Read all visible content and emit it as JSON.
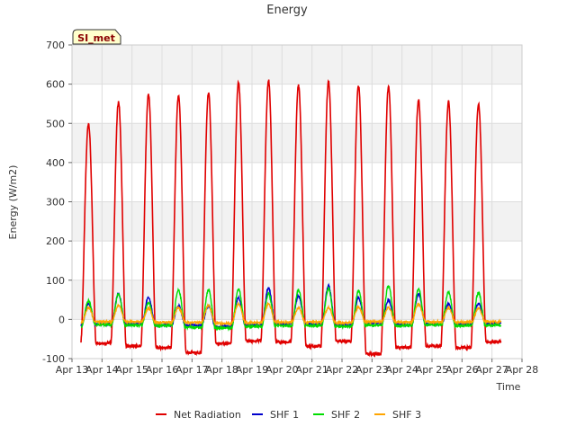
{
  "chart_data": {
    "type": "line",
    "title": "Energy",
    "xlabel": "Time",
    "ylabel": "Energy (W/m2)",
    "ylim": [
      -100,
      700
    ],
    "yticks": [
      -100,
      0,
      100,
      200,
      300,
      400,
      500,
      600,
      700
    ],
    "xlim": [
      13,
      28
    ],
    "xticks": [
      {
        "value": 13,
        "label": "Apr 13"
      },
      {
        "value": 14,
        "label": "Apr 14"
      },
      {
        "value": 15,
        "label": "Apr 15"
      },
      {
        "value": 16,
        "label": "Apr 16"
      },
      {
        "value": 17,
        "label": "Apr 17"
      },
      {
        "value": 18,
        "label": "Apr 18"
      },
      {
        "value": 19,
        "label": "Apr 19"
      },
      {
        "value": 20,
        "label": "Apr 20"
      },
      {
        "value": 21,
        "label": "Apr 21"
      },
      {
        "value": 22,
        "label": "Apr 22"
      },
      {
        "value": 23,
        "label": "Apr 23"
      },
      {
        "value": 24,
        "label": "Apr 24"
      },
      {
        "value": 25,
        "label": "Apr 25"
      },
      {
        "value": 26,
        "label": "Apr 26"
      },
      {
        "value": 27,
        "label": "Apr 27"
      },
      {
        "value": 28,
        "label": "Apr 28"
      }
    ],
    "grid": true,
    "site_label": "SI_met",
    "series_time_start": 13.3,
    "series_time_end": 27.3,
    "series": [
      {
        "name": "Net Radiation",
        "color": "#e00000",
        "day_peaks": [
          500,
          555,
          575,
          570,
          578,
          605,
          610,
          598,
          608,
          597,
          595,
          560,
          555,
          550
        ],
        "night_values": [
          -55,
          -60,
          -68,
          -72,
          -85,
          -62,
          -55,
          -58,
          -68,
          -55,
          -88,
          -72,
          -68,
          -72,
          -58
        ]
      },
      {
        "name": "SHF 1",
        "color": "#0000cc",
        "day_peaks": [
          40,
          65,
          55,
          35,
          35,
          55,
          80,
          60,
          85,
          55,
          50,
          65,
          40,
          40
        ],
        "night_values": [
          -15,
          -12,
          -12,
          -14,
          -15,
          -18,
          -15,
          -12,
          -12,
          -15,
          -10,
          -14,
          -12,
          -12,
          -10
        ]
      },
      {
        "name": "SHF 2",
        "color": "#00dd00",
        "day_peaks": [
          48,
          65,
          42,
          75,
          75,
          78,
          65,
          75,
          78,
          72,
          85,
          78,
          70,
          68
        ],
        "night_values": [
          -18,
          -14,
          -15,
          -16,
          -20,
          -22,
          -18,
          -16,
          -16,
          -18,
          -15,
          -16,
          -14,
          -16,
          -15
        ]
      },
      {
        "name": "SHF 3",
        "color": "#ffa500",
        "day_peaks": [
          30,
          35,
          28,
          30,
          35,
          40,
          40,
          30,
          30,
          32,
          30,
          40,
          30,
          28
        ],
        "night_values": [
          -8,
          -6,
          -6,
          -7,
          -8,
          -10,
          -8,
          -7,
          -7,
          -8,
          -6,
          -7,
          -6,
          -7,
          -6
        ]
      }
    ],
    "legend": {
      "placement": "bottom"
    }
  }
}
